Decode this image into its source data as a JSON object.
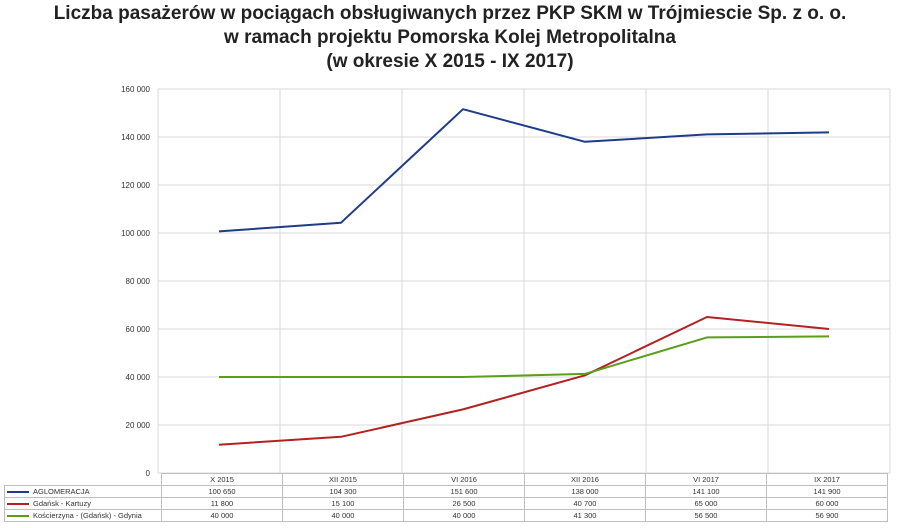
{
  "title": {
    "line1": "Liczba pasażerów w pociągach obsługiwanych  przez PKP SKM w Trójmiescie Sp. z o. o.",
    "line2": "w ramach projektu Pomorska Kolej Metropolitalna",
    "line3": "(w okresie X 2015 - IX 2017)"
  },
  "chart_data": {
    "type": "line",
    "categories": [
      "X 2015",
      "XII 2015",
      "VI 2016",
      "XII 2016",
      "VI 2017",
      "IX 2017"
    ],
    "ylim": [
      0,
      160000
    ],
    "yticks": [
      "0",
      "20 000",
      "40 000",
      "60 000",
      "80 000",
      "100 000",
      "120 000",
      "140 000",
      "160 000"
    ],
    "grid": true,
    "legend": "data-table",
    "series": [
      {
        "name": "AGLOMERACJA",
        "color": "#1f3c88",
        "values": [
          100650,
          104300,
          151600,
          138000,
          141100,
          141900
        ],
        "labels": [
          "100 650",
          "104 300",
          "151 600",
          "138 000",
          "141 100",
          "141 900"
        ]
      },
      {
        "name": "Gdańsk - Kartuzy",
        "color": "#b22222",
        "values": [
          11800,
          15100,
          26500,
          40700,
          65000,
          60000
        ],
        "labels": [
          "11 800",
          "15 100",
          "26 500",
          "40 700",
          "65 000",
          "60 000"
        ]
      },
      {
        "name": "Kościerzyna - (Gdańsk) - Gdynia",
        "color": "#5a9e1a",
        "values": [
          40000,
          40000,
          40000,
          41300,
          56500,
          56900
        ],
        "labels": [
          "40 000",
          "40 000",
          "40 000",
          "41 300",
          "56 500",
          "56 900"
        ]
      }
    ]
  }
}
